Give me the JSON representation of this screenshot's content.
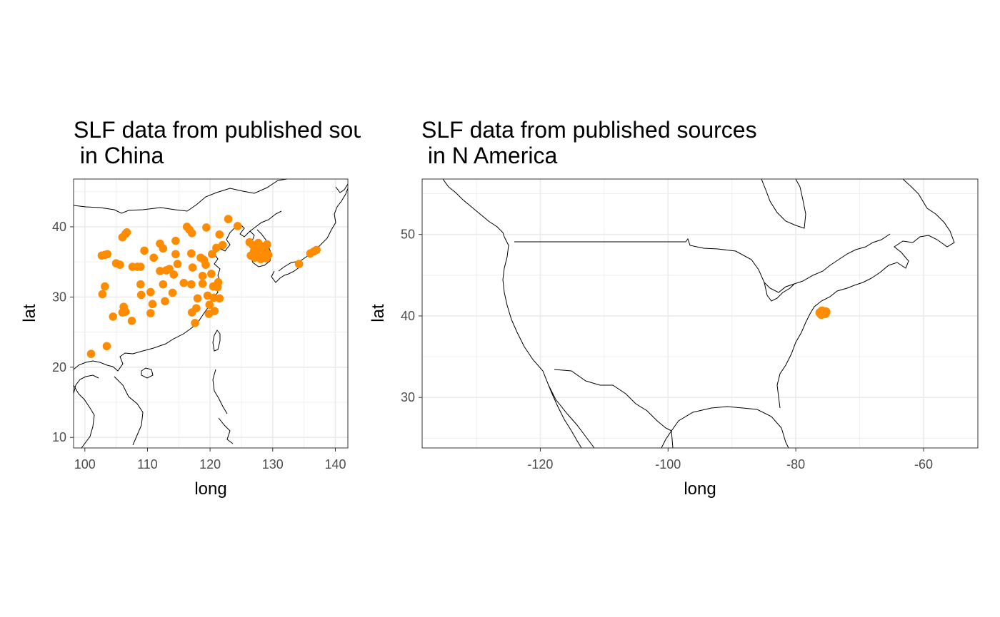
{
  "chart_data": [
    {
      "type": "scatter",
      "title": "SLF data from published sources\n in China",
      "xlabel": "long",
      "ylabel": "lat",
      "xlim": [
        98.2,
        142.0
      ],
      "ylim": [
        8.5,
        46.8
      ],
      "x_ticks": [
        100,
        110,
        120,
        130,
        140
      ],
      "y_ticks": [
        10,
        20,
        30,
        40
      ],
      "grid": true,
      "point_color": "#ff8c00",
      "points": [
        [
          101.0,
          21.9
        ],
        [
          103.5,
          23.0
        ],
        [
          102.7,
          35.9
        ],
        [
          103.6,
          36.1
        ],
        [
          103.2,
          36.0
        ],
        [
          102.8,
          30.4
        ],
        [
          103.2,
          31.5
        ],
        [
          104.5,
          27.2
        ],
        [
          105.0,
          34.8
        ],
        [
          105.6,
          34.6
        ],
        [
          106.0,
          38.5
        ],
        [
          106.5,
          39.0
        ],
        [
          106.7,
          39.2
        ],
        [
          106.2,
          28.6
        ],
        [
          106.5,
          27.9
        ],
        [
          106.0,
          27.8
        ],
        [
          107.5,
          26.6
        ],
        [
          107.6,
          34.3
        ],
        [
          108.4,
          34.3
        ],
        [
          108.9,
          34.3
        ],
        [
          109.5,
          36.6
        ],
        [
          108.9,
          31.8
        ],
        [
          109.0,
          30.3
        ],
        [
          110.5,
          30.7
        ],
        [
          110.8,
          29.0
        ],
        [
          110.5,
          27.7
        ],
        [
          111.0,
          35.6
        ],
        [
          112.0,
          37.6
        ],
        [
          112.5,
          36.9
        ],
        [
          112.0,
          33.7
        ],
        [
          112.5,
          31.8
        ],
        [
          112.8,
          29.4
        ],
        [
          113.0,
          33.8
        ],
        [
          113.5,
          34.0
        ],
        [
          114.0,
          30.6
        ],
        [
          114.2,
          33.2
        ],
        [
          114.5,
          36.1
        ],
        [
          114.5,
          38.0
        ],
        [
          114.8,
          34.7
        ],
        [
          115.8,
          32.0
        ],
        [
          116.3,
          40.0
        ],
        [
          116.7,
          39.6
        ],
        [
          117.0,
          36.2
        ],
        [
          117.1,
          39.1
        ],
        [
          117.2,
          34.2
        ],
        [
          117.0,
          31.8
        ],
        [
          117.1,
          27.8
        ],
        [
          117.6,
          26.3
        ],
        [
          117.8,
          28.4
        ],
        [
          118.0,
          29.8
        ],
        [
          118.5,
          35.6
        ],
        [
          118.8,
          33.0
        ],
        [
          118.8,
          31.9
        ],
        [
          119.0,
          35.3
        ],
        [
          119.3,
          34.6
        ],
        [
          119.4,
          39.9
        ],
        [
          119.6,
          30.2
        ],
        [
          119.8,
          27.6
        ],
        [
          119.9,
          28.9
        ],
        [
          120.2,
          33.3
        ],
        [
          120.3,
          36.1
        ],
        [
          120.5,
          31.5
        ],
        [
          120.6,
          29.9
        ],
        [
          120.7,
          28.0
        ],
        [
          121.0,
          37.0
        ],
        [
          121.2,
          31.4
        ],
        [
          121.3,
          32.1
        ],
        [
          121.5,
          38.9
        ],
        [
          121.5,
          29.8
        ],
        [
          122.0,
          37.4
        ],
        [
          122.9,
          41.1
        ],
        [
          124.4,
          40.1
        ],
        [
          126.3,
          37.8
        ],
        [
          126.5,
          35.9
        ],
        [
          126.8,
          37.4
        ],
        [
          127.0,
          36.5
        ],
        [
          127.1,
          35.6
        ],
        [
          127.4,
          36.3
        ],
        [
          127.7,
          37.7
        ],
        [
          127.9,
          36.9
        ],
        [
          128.1,
          35.4
        ],
        [
          128.3,
          37.2
        ],
        [
          128.6,
          35.9
        ],
        [
          128.8,
          36.6
        ],
        [
          129.0,
          35.5
        ],
        [
          129.1,
          37.5
        ],
        [
          129.3,
          36.0
        ],
        [
          134.2,
          34.7
        ],
        [
          136.0,
          36.2
        ],
        [
          136.6,
          36.5
        ],
        [
          137.0,
          36.7
        ]
      ]
    },
    {
      "type": "scatter",
      "title": "SLF data from published sources\n in N America",
      "xlabel": "long",
      "ylabel": "lat",
      "xlim": [
        -138.5,
        -51.5
      ],
      "ylim": [
        23.8,
        56.8
      ],
      "x_ticks": [
        -120,
        -100,
        -80,
        -60
      ],
      "y_ticks": [
        30,
        40,
        50
      ],
      "grid": true,
      "point_color": "#ff8c00",
      "points": [
        [
          -76.2,
          40.4
        ],
        [
          -75.9,
          40.6
        ],
        [
          -75.6,
          40.5
        ],
        [
          -75.4,
          40.3
        ],
        [
          -76.0,
          40.2
        ],
        [
          -75.3,
          40.5
        ],
        [
          -75.8,
          40.3
        ]
      ]
    }
  ]
}
